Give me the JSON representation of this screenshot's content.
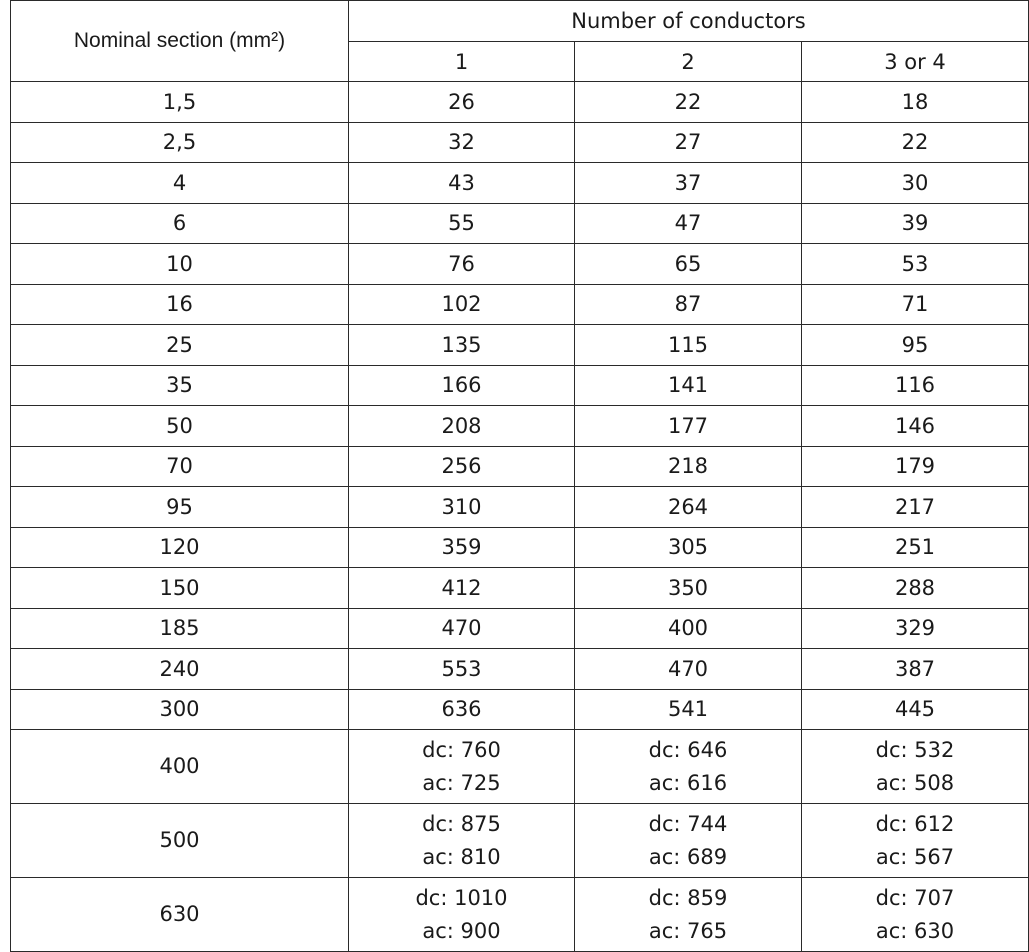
{
  "table": {
    "section_header": "Nominal section (mm²)",
    "conductors_header": "Number of conductors",
    "columns": [
      "1",
      "2",
      "3 or 4"
    ],
    "rows": [
      {
        "section": "1,5",
        "values": [
          "26",
          "22",
          "18"
        ]
      },
      {
        "section": "2,5",
        "values": [
          "32",
          "27",
          "22"
        ]
      },
      {
        "section": "4",
        "values": [
          "43",
          "37",
          "30"
        ]
      },
      {
        "section": "6",
        "values": [
          "55",
          "47",
          "39"
        ]
      },
      {
        "section": "10",
        "values": [
          "76",
          "65",
          "53"
        ]
      },
      {
        "section": "16",
        "values": [
          "102",
          "87",
          "71"
        ]
      },
      {
        "section": "25",
        "values": [
          "135",
          "115",
          "95"
        ]
      },
      {
        "section": "35",
        "values": [
          "166",
          "141",
          "116"
        ]
      },
      {
        "section": "50",
        "values": [
          "208",
          "177",
          "146"
        ]
      },
      {
        "section": "70",
        "values": [
          "256",
          "218",
          "179"
        ]
      },
      {
        "section": "95",
        "values": [
          "310",
          "264",
          "217"
        ]
      },
      {
        "section": "120",
        "values": [
          "359",
          "305",
          "251"
        ]
      },
      {
        "section": "150",
        "values": [
          "412",
          "350",
          "288"
        ]
      },
      {
        "section": "185",
        "values": [
          "470",
          "400",
          "329"
        ]
      },
      {
        "section": "240",
        "values": [
          "553",
          "470",
          "387"
        ]
      },
      {
        "section": "300",
        "values": [
          "636",
          "541",
          "445"
        ]
      }
    ],
    "dual_rows": [
      {
        "section": "400",
        "values": [
          {
            "dc": "dc: 760",
            "ac": "ac: 725"
          },
          {
            "dc": "dc: 646",
            "ac": "ac: 616"
          },
          {
            "dc": "dc: 532",
            "ac": "ac: 508"
          }
        ]
      },
      {
        "section": "500",
        "values": [
          {
            "dc": "dc: 875",
            "ac": "ac: 810"
          },
          {
            "dc": "dc: 744",
            "ac": "ac: 689"
          },
          {
            "dc": "dc: 612",
            "ac": "ac: 567"
          }
        ]
      },
      {
        "section": "630",
        "values": [
          {
            "dc": "dc: 1010",
            "ac": "ac: 900"
          },
          {
            "dc": "dc: 859",
            "ac": "ac: 765"
          },
          {
            "dc": "dc: 707",
            "ac": "ac: 630"
          }
        ]
      }
    ]
  }
}
